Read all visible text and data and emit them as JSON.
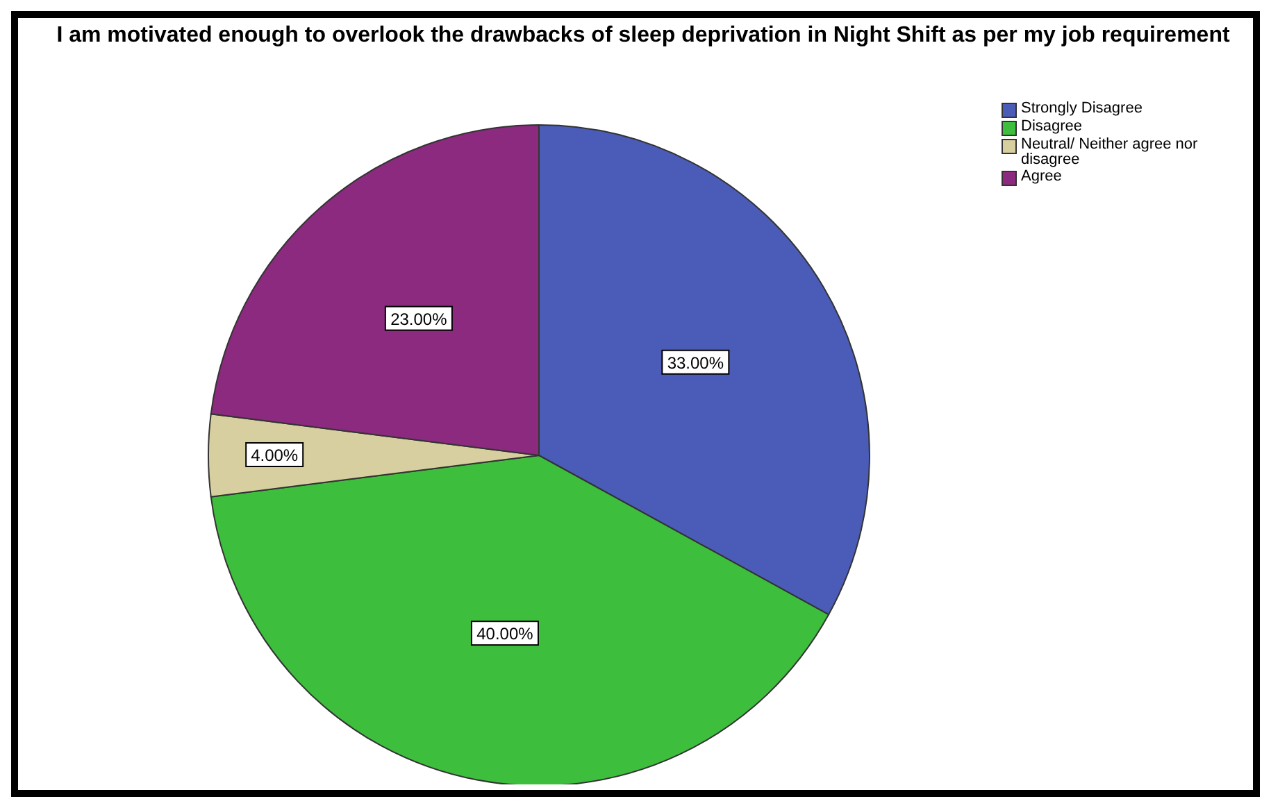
{
  "chart_data": {
    "type": "pie",
    "title": "I am motivated enough to overlook the drawbacks of sleep deprivation in Night Shift as per my job requirement",
    "categories": [
      "Strongly Disagree",
      "Disagree",
      "Neutral/ Neither agree nor disagree",
      "Agree"
    ],
    "values": [
      33,
      40,
      4,
      23
    ],
    "colors": [
      "#4a5cb8",
      "#3dbf3d",
      "#d8cfa0",
      "#8b2a7e"
    ],
    "value_labels": [
      "33.00%",
      "40.00%",
      "4.00%",
      "23.00%"
    ],
    "legend": "top right"
  }
}
